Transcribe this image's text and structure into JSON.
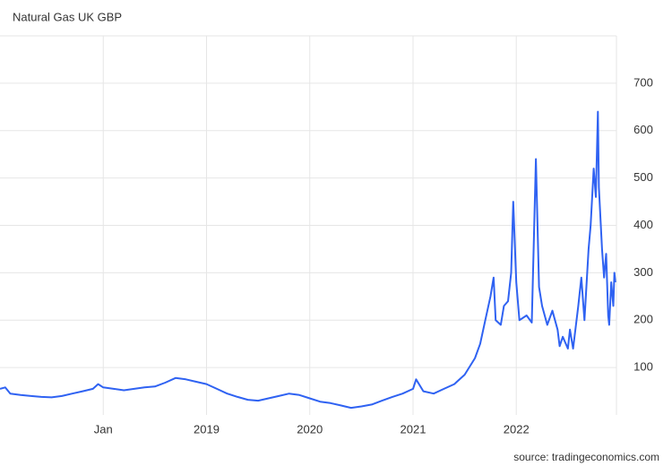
{
  "chart_data": {
    "type": "line",
    "title": "Natural Gas UK GBP",
    "source": "source: tradingeconomics.com",
    "x": [
      2017.0,
      2017.05,
      2017.1,
      2017.2,
      2017.3,
      2017.4,
      2017.5,
      2017.6,
      2017.7,
      2017.8,
      2017.9,
      2017.95,
      2018.0,
      2018.1,
      2018.2,
      2018.3,
      2018.4,
      2018.5,
      2018.6,
      2018.7,
      2018.8,
      2018.9,
      2019.0,
      2019.1,
      2019.2,
      2019.3,
      2019.4,
      2019.5,
      2019.6,
      2019.7,
      2019.8,
      2019.9,
      2020.0,
      2020.1,
      2020.2,
      2020.3,
      2020.4,
      2020.5,
      2020.6,
      2020.7,
      2020.8,
      2020.9,
      2021.0,
      2021.03,
      2021.1,
      2021.2,
      2021.3,
      2021.4,
      2021.5,
      2021.6,
      2021.65,
      2021.7,
      2021.75,
      2021.78,
      2021.8,
      2021.85,
      2021.88,
      2021.92,
      2021.95,
      2021.97,
      2022.0,
      2022.03,
      2022.1,
      2022.15,
      2022.19,
      2022.22,
      2022.25,
      2022.3,
      2022.35,
      2022.4,
      2022.42,
      2022.45,
      2022.5,
      2022.52,
      2022.55,
      2022.6,
      2022.63,
      2022.66,
      2022.7,
      2022.72,
      2022.75,
      2022.77,
      2022.79,
      2022.8,
      2022.83,
      2022.85,
      2022.87,
      2022.89,
      2022.9,
      2022.92,
      2022.94,
      2022.95,
      2022.96
    ],
    "series": [
      {
        "name": "Natural Gas UK GBP",
        "color": "#2f62f2",
        "values": [
          55,
          58,
          45,
          42,
          40,
          38,
          37,
          40,
          45,
          50,
          55,
          65,
          58,
          55,
          52,
          55,
          58,
          60,
          68,
          78,
          75,
          70,
          65,
          55,
          45,
          38,
          32,
          30,
          35,
          40,
          45,
          42,
          35,
          28,
          25,
          20,
          15,
          18,
          22,
          30,
          38,
          45,
          55,
          75,
          50,
          45,
          55,
          65,
          85,
          120,
          150,
          200,
          250,
          290,
          200,
          190,
          230,
          240,
          300,
          450,
          280,
          200,
          210,
          195,
          540,
          270,
          230,
          190,
          220,
          180,
          145,
          165,
          140,
          180,
          140,
          230,
          290,
          200,
          350,
          400,
          520,
          460,
          640,
          480,
          350,
          290,
          340,
          210,
          190,
          280,
          230,
          300,
          280
        ]
      }
    ],
    "xlim": [
      2017.0,
      2022.97
    ],
    "xticks": [
      {
        "value": 2018,
        "label": "Jan"
      },
      2019,
      2020,
      2021,
      2022
    ],
    "ylim": [
      0,
      800
    ],
    "yticks": [
      100,
      200,
      300,
      400,
      500,
      600,
      700
    ],
    "grid": true
  }
}
